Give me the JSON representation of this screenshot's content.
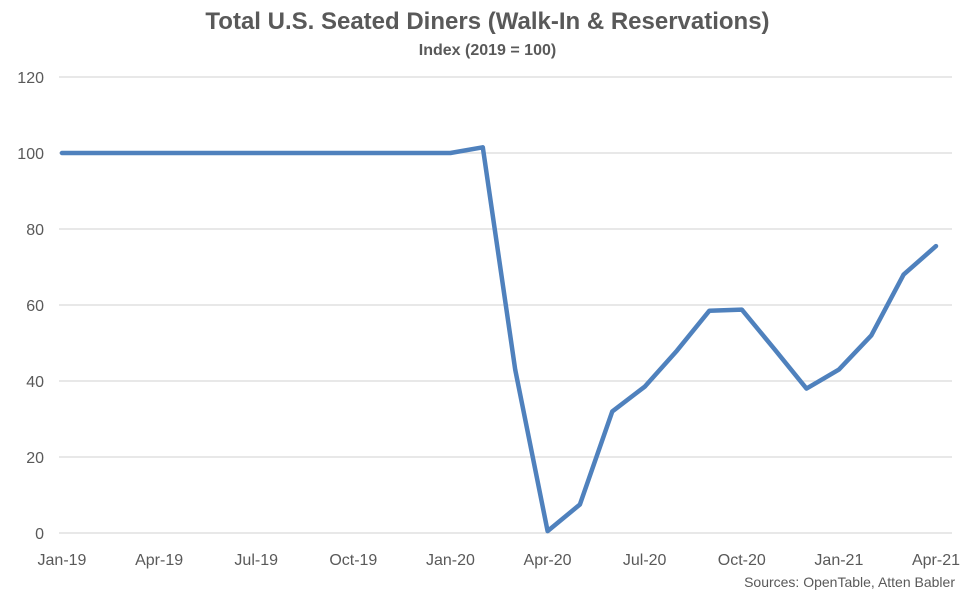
{
  "chart_data": {
    "type": "line",
    "title": "Total U.S. Seated Diners (Walk-In & Reservations)",
    "subtitle": "Index (2019 = 100)",
    "source": "Sources: OpenTable, Atten Babler",
    "ylim": [
      0,
      120
    ],
    "yticks": [
      0,
      20,
      40,
      60,
      80,
      100,
      120
    ],
    "xlim": [
      0,
      27
    ],
    "x_tick_labels": [
      {
        "x": 0,
        "label": "Jan-19"
      },
      {
        "x": 3,
        "label": "Apr-19"
      },
      {
        "x": 6,
        "label": "Jul-19"
      },
      {
        "x": 9,
        "label": "Oct-19"
      },
      {
        "x": 12,
        "label": "Jan-20"
      },
      {
        "x": 15,
        "label": "Apr-20"
      },
      {
        "x": 18,
        "label": "Jul-20"
      },
      {
        "x": 21,
        "label": "Oct-20"
      },
      {
        "x": 24,
        "label": "Jan-21"
      },
      {
        "x": 27,
        "label": "Apr-21"
      }
    ],
    "grid": true,
    "line_color": "#4f81bd",
    "series": [
      {
        "x": [
          "Jan-19",
          "Feb-19",
          "Mar-19",
          "Apr-19",
          "May-19",
          "Jun-19",
          "Jul-19",
          "Aug-19",
          "Sep-19",
          "Oct-19",
          "Nov-19",
          "Dec-19",
          "Jan-20",
          "Feb-20",
          "Mar-20",
          "Apr-20",
          "May-20",
          "Jun-20",
          "Jul-20",
          "Aug-20",
          "Sep-20",
          "Oct-20",
          "Nov-20",
          "Dec-20",
          "Jan-21",
          "Feb-21",
          "Mar-21",
          "Apr-21"
        ],
        "values": [
          100,
          100,
          100,
          100,
          100,
          100,
          100,
          100,
          100,
          100,
          100,
          100,
          100,
          101.5,
          43,
          0.5,
          7.5,
          32,
          38.5,
          48,
          58.5,
          58.8,
          48.5,
          38,
          43,
          52,
          68,
          75.5
        ]
      }
    ]
  }
}
